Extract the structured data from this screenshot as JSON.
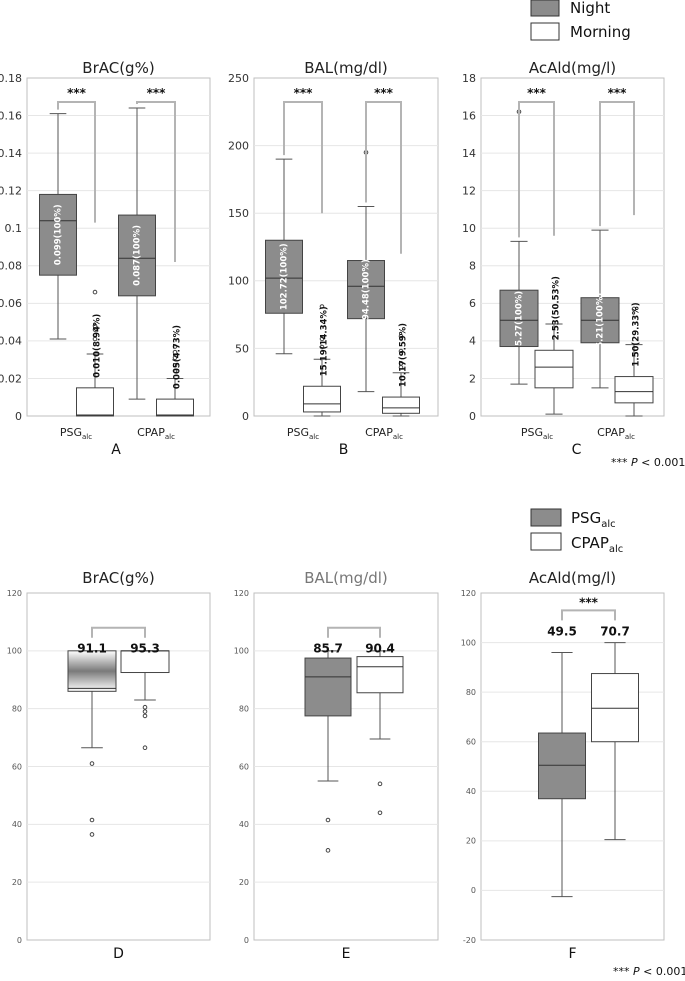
{
  "legends": [
    {
      "items": [
        {
          "name": "Night",
          "fill": "#8c8c8c"
        },
        {
          "name": "Morning",
          "fill": "#ffffff"
        }
      ]
    },
    {
      "items": [
        {
          "name": "PSG",
          "sub": "alc",
          "fill": "#8c8c8c"
        },
        {
          "name": "CPAP",
          "sub": "alc",
          "fill": "#ffffff"
        }
      ]
    }
  ],
  "significance_notes": [
    {
      "stars": "***",
      "p": "P",
      "rest": " < 0.001"
    },
    {
      "stars": "***",
      "p": "P",
      "rest": " < 0.001"
    }
  ],
  "colors": {
    "dark_fill": "#8c8c8c",
    "light_fill": "#ffffff",
    "bracket": "#b4b4b4",
    "grid": "#e6e6e6",
    "frame": "#bfbfbf"
  },
  "chart_data": [
    {
      "panel": "A",
      "type": "boxplot",
      "title": "BrAC(g%)",
      "title_color": "#222222",
      "ylim": [
        0,
        0.18
      ],
      "yticks": [
        0,
        0.02,
        0.04,
        0.06,
        0.08,
        0.1,
        0.12,
        0.14,
        0.16,
        0.18
      ],
      "ytick_labels": [
        "0",
        "0.02",
        "0.04",
        "0.06",
        "0.08",
        "0.1",
        "0.12",
        "0.14",
        "0.16",
        "0.18"
      ],
      "groups": [
        {
          "name": "PSG",
          "sub": "alc"
        },
        {
          "name": "CPAP",
          "sub": "alc"
        }
      ],
      "boxes": [
        {
          "group": 0,
          "series": "Night",
          "min": 0.041,
          "q1": 0.075,
          "median": 0.104,
          "q3": 0.118,
          "max": 0.161,
          "outliers": [],
          "label": "0.099(100%)",
          "label_in_box": true
        },
        {
          "group": 0,
          "series": "Morning",
          "min": 0,
          "q1": 0,
          "median": 0.0005,
          "q3": 0.015,
          "max": 0.033,
          "outliers": [
            0.041,
            0.043,
            0.046,
            0.048,
            0.066
          ],
          "label": "0.010(8.94%)",
          "label_in_box": false
        },
        {
          "group": 1,
          "series": "Night",
          "min": 0.009,
          "q1": 0.064,
          "median": 0.084,
          "q3": 0.107,
          "max": 0.164,
          "outliers": [],
          "label": "0.087(100%)",
          "label_in_box": true
        },
        {
          "group": 1,
          "series": "Morning",
          "min": 0,
          "q1": 0,
          "median": 0.0005,
          "q3": 0.009,
          "max": 0.02,
          "outliers": [
            0.024,
            0.027,
            0.031,
            0.034,
            0.037
          ],
          "label": "0.005(4.73%)",
          "label_in_box": false
        }
      ],
      "brackets": [
        {
          "from": 0,
          "to": 1,
          "stars": "***",
          "right_bottom": 0.103
        },
        {
          "from": 2,
          "to": 3,
          "stars": "***",
          "right_bottom": 0.082
        }
      ]
    },
    {
      "panel": "B",
      "type": "boxplot",
      "title": "BAL(mg/dl)",
      "title_color": "#222222",
      "ylim": [
        0,
        250
      ],
      "yticks": [
        0,
        50,
        100,
        150,
        200,
        250
      ],
      "ytick_labels": [
        "0",
        "50",
        "100",
        "150",
        "200",
        "250"
      ],
      "groups": [
        {
          "name": "PSG",
          "sub": "alc"
        },
        {
          "name": "CPAP",
          "sub": "alc"
        }
      ],
      "boxes": [
        {
          "group": 0,
          "series": "Night",
          "min": 46,
          "q1": 76,
          "median": 102,
          "q3": 130,
          "max": 190,
          "outliers": [],
          "label": "102.72(100%)",
          "label_in_box": true
        },
        {
          "group": 0,
          "series": "Morning",
          "min": 0,
          "q1": 3,
          "median": 9,
          "q3": 22,
          "max": 42,
          "outliers": [
            51,
            57,
            81
          ],
          "label": "15.19(14.34%)",
          "label_in_box": false
        },
        {
          "group": 1,
          "series": "Night",
          "min": 18,
          "q1": 72,
          "median": 96,
          "q3": 115,
          "max": 155,
          "outliers": [
            195
          ],
          "label": "94.48(100%)",
          "label_in_box": true
        },
        {
          "group": 1,
          "series": "Morning",
          "min": 0,
          "q1": 2,
          "median": 6,
          "q3": 14,
          "max": 32,
          "outliers": [
            36,
            39,
            48,
            59
          ],
          "label": "10.17(9.59%)",
          "label_in_box": false
        }
      ],
      "brackets": [
        {
          "from": 0,
          "to": 1,
          "stars": "***",
          "right_bottom": 150
        },
        {
          "from": 2,
          "to": 3,
          "stars": "***",
          "right_bottom": 120
        }
      ]
    },
    {
      "panel": "C",
      "type": "boxplot",
      "title": "AcAld(mg/l)",
      "title_color": "#222222",
      "ylim": [
        0,
        18
      ],
      "yticks": [
        0,
        2,
        4,
        6,
        8,
        10,
        12,
        14,
        16,
        18
      ],
      "ytick_labels": [
        "0",
        "2",
        "4",
        "6",
        "8",
        "10",
        "12",
        "14",
        "16",
        "18"
      ],
      "groups": [
        {
          "name": "PSG",
          "sub": "alc"
        },
        {
          "name": "CPAP",
          "sub": "alc"
        }
      ],
      "boxes": [
        {
          "group": 0,
          "series": "Night",
          "min": 1.7,
          "q1": 3.7,
          "median": 5.1,
          "q3": 6.7,
          "max": 9.3,
          "outliers": [
            16.2
          ],
          "label": "5.27(100%)",
          "label_in_box": true
        },
        {
          "group": 0,
          "series": "Morning",
          "min": 0.1,
          "q1": 1.5,
          "median": 2.6,
          "q3": 3.5,
          "max": 4.9,
          "outliers": [],
          "label": "2.53(50.53%)",
          "label_in_box": false
        },
        {
          "group": 1,
          "series": "Night",
          "min": 1.5,
          "q1": 3.9,
          "median": 5.1,
          "q3": 6.3,
          "max": 9.9,
          "outliers": [],
          "label": "5.21(100%)",
          "label_in_box": true
        },
        {
          "group": 1,
          "series": "Morning",
          "min": 0,
          "q1": 0.7,
          "median": 1.3,
          "q3": 2.1,
          "max": 3.8,
          "outliers": [
            5.7
          ],
          "label": "1.50(29.33%)",
          "label_in_box": false
        }
      ],
      "brackets": [
        {
          "from": 0,
          "to": 1,
          "stars": "***",
          "right_bottom": 9.6
        },
        {
          "from": 2,
          "to": 3,
          "stars": "***",
          "right_bottom": 10.7
        }
      ]
    },
    {
      "panel": "D",
      "type": "boxplot",
      "title": "BrAC(g%)",
      "title_color": "#222222",
      "ylim": [
        0,
        120
      ],
      "yticks": [
        0,
        20,
        40,
        60,
        80,
        100,
        120
      ],
      "ytick_labels": [
        "0",
        "20",
        "40",
        "60",
        "80",
        "100",
        "120"
      ],
      "groups": [],
      "boxes": [
        {
          "group": 0,
          "series": "PSG",
          "min": 66.5,
          "q1": 86,
          "median": 87,
          "q3": 100,
          "max": 100,
          "outliers": [
            36.5,
            41.5,
            61
          ],
          "label": "91.1",
          "label_in_box": false,
          "gradient": true
        },
        {
          "group": 1,
          "series": "CPAP",
          "min": 83,
          "q1": 92.5,
          "median": 100,
          "q3": 100,
          "max": 100,
          "outliers": [
            66.5,
            77.5,
            79,
            80.5
          ],
          "label": "95.3",
          "label_in_box": false
        }
      ],
      "brackets": [
        {
          "from": 0,
          "to": 1,
          "stars": "",
          "top": 108
        }
      ]
    },
    {
      "panel": "E",
      "type": "boxplot",
      "title": "BAL(mg/dl)",
      "title_color": "#777777",
      "ylim": [
        0,
        120
      ],
      "yticks": [
        0,
        20,
        40,
        60,
        80,
        100,
        120
      ],
      "ytick_labels": [
        "0",
        "20",
        "40",
        "60",
        "80",
        "100",
        "120"
      ],
      "groups": [],
      "boxes": [
        {
          "group": 0,
          "series": "PSG",
          "min": 55,
          "q1": 77.5,
          "median": 91,
          "q3": 97.5,
          "max": 100,
          "outliers": [
            31,
            41.5
          ],
          "label": "85.7",
          "label_in_box": false
        },
        {
          "group": 1,
          "series": "CPAP",
          "min": 69.5,
          "q1": 85.5,
          "median": 94.5,
          "q3": 98,
          "max": 100,
          "outliers": [
            44,
            54
          ],
          "label": "90.4",
          "label_in_box": false
        }
      ],
      "brackets": [
        {
          "from": 0,
          "to": 1,
          "stars": "",
          "top": 108
        }
      ]
    },
    {
      "panel": "F",
      "type": "boxplot",
      "title": "AcAld(mg/l)",
      "title_color": "#222222",
      "ylim": [
        -20,
        120
      ],
      "yticks": [
        -20,
        0,
        20,
        40,
        60,
        80,
        100,
        120
      ],
      "ytick_labels": [
        "-20",
        "0",
        "20",
        "40",
        "60",
        "80",
        "100",
        "120"
      ],
      "groups": [],
      "boxes": [
        {
          "group": 0,
          "series": "PSG",
          "min": -2.5,
          "q1": 37,
          "median": 50.5,
          "q3": 63.5,
          "max": 96,
          "outliers": [],
          "label": "49.5",
          "label_in_box": false
        },
        {
          "group": 1,
          "series": "CPAP",
          "min": 20.5,
          "q1": 60,
          "median": 73.5,
          "q3": 87.5,
          "max": 100,
          "outliers": [],
          "label": "70.7",
          "label_in_box": false
        }
      ],
      "brackets": [
        {
          "from": 0,
          "to": 1,
          "stars": "***",
          "top": 113
        }
      ]
    }
  ]
}
